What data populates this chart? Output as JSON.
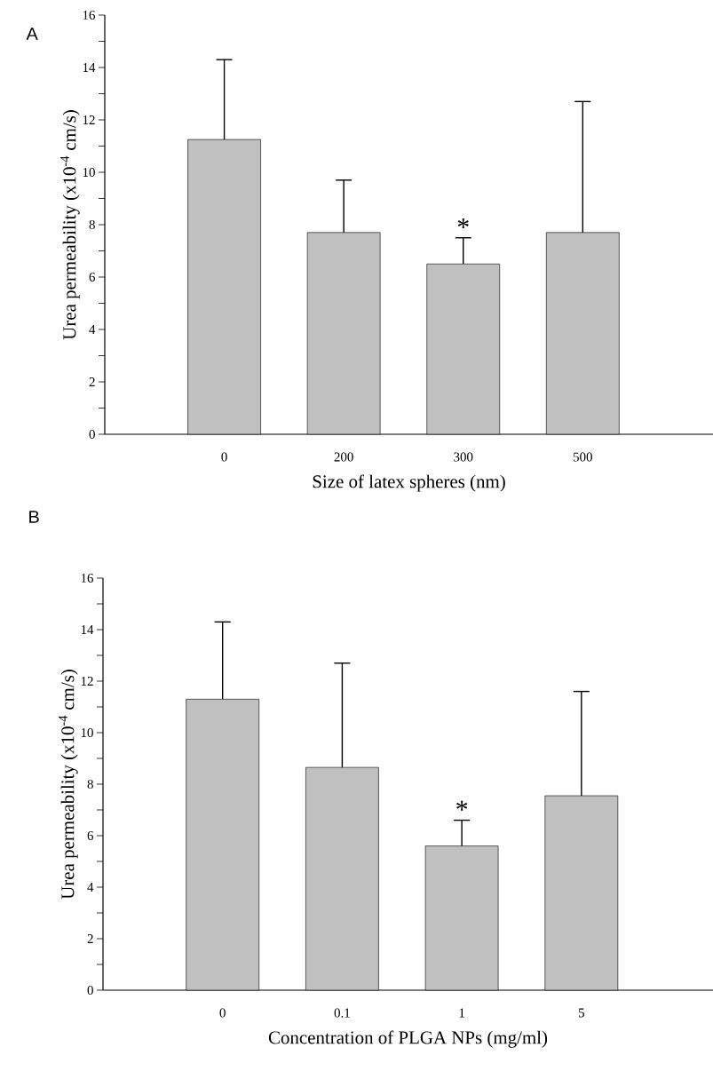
{
  "chart_data": [
    {
      "type": "bar",
      "title": "A",
      "xlabel": "Size  of latex spheres (nm)",
      "ylabel": "Urea permeability (x10$^{-4}$ cm/s)",
      "categories": [
        "0",
        "200",
        "300",
        "500"
      ],
      "values": [
        11.25,
        7.7,
        6.5,
        7.7
      ],
      "errors": [
        [
          11.25,
          14.3
        ],
        [
          7.7,
          9.7
        ],
        [
          6.5,
          7.5
        ],
        [
          7.7,
          12.7
        ]
      ],
      "color": "#c0c0c0",
      "ylim": [
        0,
        16
      ],
      "yticks": [
        0,
        {
          "value": 1,
          "label": null
        },
        2,
        {
          "value": 3,
          "label": null
        },
        4,
        {
          "value": 5,
          "label": null
        },
        6,
        {
          "value": 7,
          "label": null
        },
        8,
        {
          "value": 9,
          "label": null
        },
        10,
        {
          "value": 11,
          "label": null
        },
        12,
        {
          "value": 13,
          "label": null
        },
        14,
        {
          "value": 15,
          "label": null
        },
        16
      ],
      "annotations": [
        {
          "text": "*",
          "x": "300",
          "y": 7.5
        }
      ]
    },
    {
      "type": "bar",
      "title": "B",
      "xlabel": "Concentration of PLGA NPs (mg/ml)",
      "ylabel": "Urea permeability (x10$^{-4}$ cm/s)",
      "categories": [
        "0",
        "0.1",
        "1",
        "5"
      ],
      "values": [
        11.3,
        8.65,
        5.6,
        7.55
      ],
      "errors": [
        [
          11.3,
          14.3
        ],
        [
          8.65,
          12.7
        ],
        [
          5.6,
          6.6
        ],
        [
          7.55,
          11.6
        ]
      ],
      "color": "#c0c0c0",
      "ylim": [
        0,
        16
      ],
      "yticks": [
        0,
        {
          "value": 1,
          "label": null
        },
        2,
        {
          "value": 3,
          "label": null
        },
        4,
        {
          "value": 5,
          "label": null
        },
        6,
        {
          "value": 7,
          "label": null
        },
        8,
        {
          "value": 9,
          "label": null
        },
        10,
        {
          "value": 11,
          "label": null
        },
        12,
        {
          "value": 13,
          "label": null
        },
        14,
        {
          "value": 15,
          "label": null
        },
        16
      ],
      "annotations": [
        {
          "text": "*",
          "x": "1",
          "y": 6.6
        }
      ]
    }
  ]
}
